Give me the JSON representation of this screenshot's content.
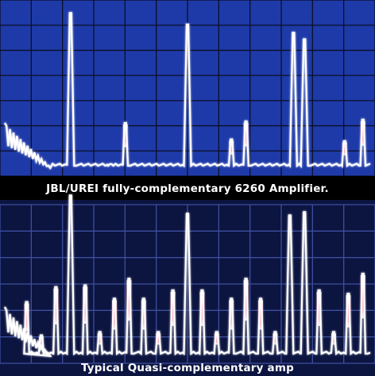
{
  "colors": {
    "top_background": "#1e3aa8",
    "bottom_background": "#0c1440",
    "grid": "#0a0f28",
    "trace": "#ffffff",
    "peak_highlight": "#ff3f6e"
  },
  "chart_data": [
    {
      "type": "line",
      "title": "JBL/UREI fully-complementary 6260 Amplifier.",
      "xlabel": "",
      "ylabel": "",
      "grid": true,
      "xlim": [
        0,
        1
      ],
      "ylim": [
        0,
        1
      ],
      "series": [
        {
          "peaks": [
            {
              "x": 0.18,
              "y": 0.95
            },
            {
              "x": 0.29,
              "y": 0.03
            },
            {
              "x": 0.33,
              "y": 0.28
            },
            {
              "x": 0.5,
              "y": 0.88
            },
            {
              "x": 0.62,
              "y": 0.18
            },
            {
              "x": 0.66,
              "y": 0.29
            },
            {
              "x": 0.79,
              "y": 0.83
            },
            {
              "x": 0.82,
              "y": 0.79
            },
            {
              "x": 0.93,
              "y": 0.17
            },
            {
              "x": 0.98,
              "y": 0.3
            }
          ]
        }
      ]
    },
    {
      "type": "line",
      "title": "Typical Quasi-complementary amp",
      "xlabel": "",
      "ylabel": "",
      "grid": true,
      "xlim": [
        0,
        1
      ],
      "ylim": [
        0,
        1
      ],
      "series": [
        {
          "peaks": [
            {
              "x": 0.06,
              "y": 0.33
            },
            {
              "x": 0.1,
              "y": 0.13
            },
            {
              "x": 0.14,
              "y": 0.42
            },
            {
              "x": 0.18,
              "y": 0.97
            },
            {
              "x": 0.22,
              "y": 0.43
            },
            {
              "x": 0.26,
              "y": 0.15
            },
            {
              "x": 0.3,
              "y": 0.35
            },
            {
              "x": 0.34,
              "y": 0.47
            },
            {
              "x": 0.38,
              "y": 0.35
            },
            {
              "x": 0.42,
              "y": 0.15
            },
            {
              "x": 0.46,
              "y": 0.4
            },
            {
              "x": 0.5,
              "y": 0.86
            },
            {
              "x": 0.54,
              "y": 0.4
            },
            {
              "x": 0.58,
              "y": 0.15
            },
            {
              "x": 0.62,
              "y": 0.35
            },
            {
              "x": 0.66,
              "y": 0.47
            },
            {
              "x": 0.7,
              "y": 0.35
            },
            {
              "x": 0.74,
              "y": 0.15
            },
            {
              "x": 0.78,
              "y": 0.85
            },
            {
              "x": 0.82,
              "y": 0.87
            },
            {
              "x": 0.86,
              "y": 0.4
            },
            {
              "x": 0.9,
              "y": 0.15
            },
            {
              "x": 0.94,
              "y": 0.38
            },
            {
              "x": 0.98,
              "y": 0.5
            }
          ]
        }
      ]
    }
  ]
}
